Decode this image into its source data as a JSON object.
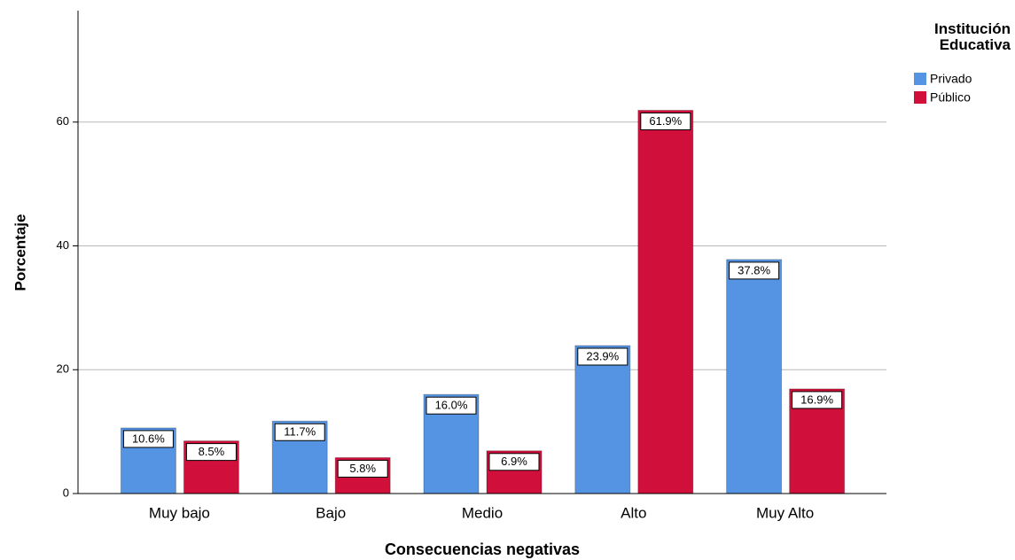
{
  "chart_data": {
    "type": "bar",
    "x_label": "Consecuencias negativas",
    "y_label": "Porcentaje",
    "legend_title": "Institución Educativa",
    "categories": [
      "Muy bajo",
      "Bajo",
      "Medio",
      "Alto",
      "Muy Alto"
    ],
    "series": [
      {
        "name": "Privado",
        "color": "#5594e2",
        "values": [
          10.6,
          11.7,
          16.0,
          23.9,
          37.8
        ],
        "value_labels": [
          "10.6%",
          "11.7%",
          "16.0%",
          "23.9%",
          "37.8%"
        ]
      },
      {
        "name": "Público",
        "color": "#d0103a",
        "values": [
          8.5,
          5.8,
          6.9,
          61.9,
          16.9
        ],
        "value_labels": [
          "8.5%",
          "5.8%",
          "6.9%",
          "61.9%",
          "16.9%"
        ]
      }
    ],
    "ylim": [
      0,
      78
    ],
    "yticks": [
      0,
      20,
      40,
      60
    ],
    "grid": true,
    "legend": "right"
  }
}
